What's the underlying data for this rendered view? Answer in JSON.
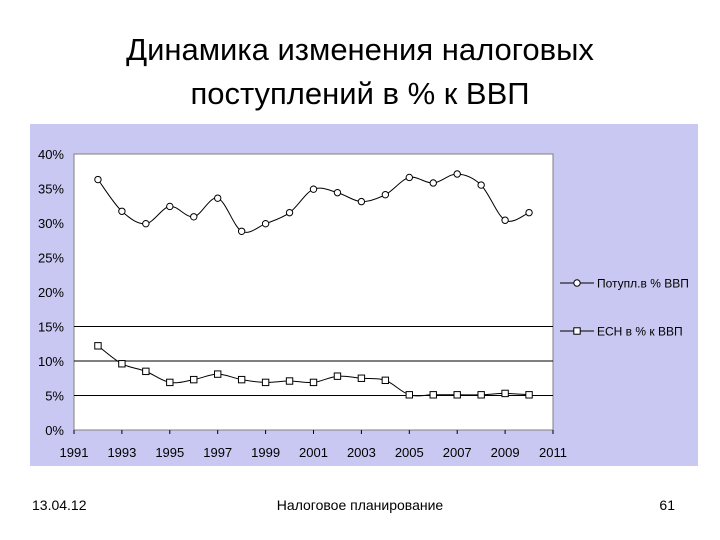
{
  "slide": {
    "title_line1": "Динамика изменения налоговых",
    "title_line2": "поступлений в % к ВВП",
    "footer_date": "13.04.12",
    "footer_center": "Налоговое планирование",
    "page_number": "61"
  },
  "colors": {
    "chart_bg": "#c8c8f2",
    "plot_bg": "#ffffff",
    "series_line": "#000000"
  },
  "chart_data": {
    "type": "line",
    "title": "",
    "xlabel": "",
    "ylabel": "",
    "xlim": [
      1991,
      2011
    ],
    "ylim": [
      0,
      40
    ],
    "x_ticks": [
      "1991",
      "1993",
      "1995",
      "1997",
      "1999",
      "2001",
      "2003",
      "2005",
      "2007",
      "2009",
      "2011"
    ],
    "y_ticks": [
      "0%",
      "5%",
      "10%",
      "15%",
      "20%",
      "25%",
      "30%",
      "35%",
      "40%"
    ],
    "gridlines_y": [
      5,
      10,
      15
    ],
    "legend_position": "right",
    "series": [
      {
        "name": "Потупл.в % ВВП",
        "marker": "circle",
        "x": [
          1992,
          1993,
          1994,
          1995,
          1996,
          1997,
          1998,
          1999,
          2000,
          2001,
          2002,
          2003,
          2004,
          2005,
          2006,
          2007,
          2008,
          2009,
          2010
        ],
        "values": [
          36.3,
          31.7,
          29.9,
          32.4,
          30.9,
          33.6,
          28.8,
          29.9,
          31.5,
          34.9,
          34.4,
          33.1,
          34.1,
          36.6,
          35.8,
          37.1,
          35.5,
          30.4,
          31.5
        ]
      },
      {
        "name": "ЕСН в % к ВВП",
        "marker": "square",
        "x": [
          1992,
          1993,
          1994,
          1995,
          1996,
          1997,
          1998,
          1999,
          2000,
          2001,
          2002,
          2003,
          2004,
          2005,
          2006,
          2007,
          2008,
          2009,
          2010
        ],
        "values": [
          12.2,
          9.6,
          8.5,
          6.9,
          7.3,
          8.1,
          7.3,
          6.9,
          7.1,
          6.9,
          7.8,
          7.5,
          7.2,
          5.1,
          5.1,
          5.1,
          5.1,
          5.3,
          5.1
        ]
      }
    ]
  }
}
